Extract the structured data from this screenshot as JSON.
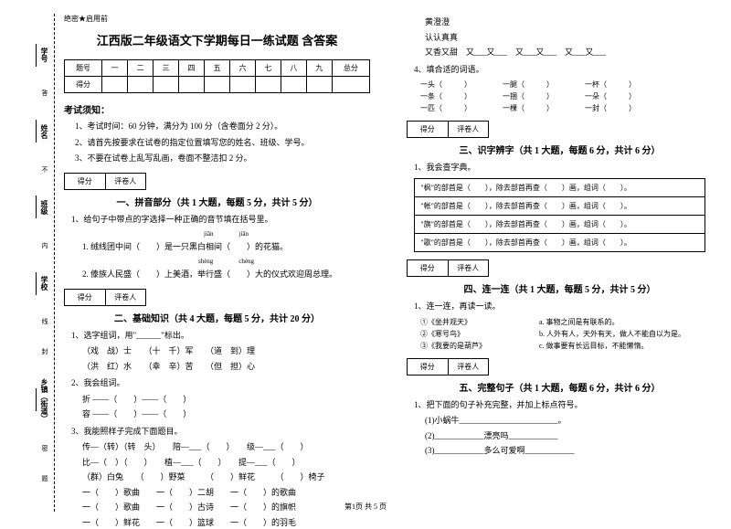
{
  "header": {
    "confidential": "绝密★启用前"
  },
  "title": "江西版二年级语文下学期每日一练试题 含答案",
  "score_table": {
    "row1": [
      "题号",
      "一",
      "二",
      "三",
      "四",
      "五",
      "六",
      "七",
      "八",
      "九",
      "总分"
    ],
    "row2_label": "得分"
  },
  "margin": {
    "xuehao": "学号",
    "xingming": "姓名",
    "banji": "班级",
    "xuexiao": "学校",
    "xiangzhen": "乡镇（街道）",
    "nei": "内",
    "xian": "线",
    "feng": "封",
    "bu": "不",
    "mi": "密",
    "ti": "题",
    "da": "答"
  },
  "notice": {
    "title": "考试须知：",
    "items": [
      "1、考试时间：60 分钟，满分为 100 分（含卷面分 2 分）。",
      "2、请首先按要求在试卷的指定位置填写您的姓名、班级、学号。",
      "3、不要在试卷上乱写乱画，卷面不整洁扣 2 分。"
    ]
  },
  "section_box": {
    "score": "得分",
    "reviewer": "评卷人"
  },
  "sections": {
    "s1": {
      "title": "一、拼音部分（共 1 大题，每题 5 分，共计 5 分）",
      "q1": "1、给句子中带点的字选择一种正确的音节填在括号里。",
      "q1_1a": "jiān",
      "q1_1b": "jiān",
      "q1_1": "1. 绒线团中间（　　）是一只黑白相间（　　）的花猫。",
      "q1_2a": "shèng",
      "q1_2b": "chéng",
      "q1_2": "2. 傣族人民盛（　　）上美酒，举行盛（　　）大的仪式欢迎周总理。"
    },
    "s2": {
      "title": "二、基础知识（共 4 大题，每题 5 分，共计 20 分）",
      "q1": "1、选字组词，用\"______\"标出。",
      "q1_1": "（戏　战）士　　（十　千）军　　（道　到）理",
      "q1_2": "（洪　红）水　　（幸　辛）苦　　（但　担）心",
      "q2": "2、我会组词。",
      "q2_1": "折 ——（　　）——（　　）",
      "q2_2": "容 ——（　　）——（　　）",
      "q3": "3、我能照样子完成下面题目。",
      "q3_1": "传—（转）（转　头）　　陪—___（　　）　　级—___（　　）",
      "q3_2": "比—（　）（　　）　　植—___（　　）　　提—___（　　）",
      "q3_3": "（群）白兔　　（　　）野菜　　　（　　）鲜花　　　（　　）椅子",
      "q3_4": "一（　　）歌曲　　一（　　）二胡　　一（　　）的歌曲",
      "q3_5": "一（　　）歌曲　　一（　　）古诗　　一（　　）的旗帜",
      "q3_6": "一（　　）鲜花　　一（　　）篮球　　一（　　）的羽毛"
    },
    "s2r": {
      "lines": [
        "黄澄澄",
        "认认真真",
        "又香又甜　又___又___　又___又___　又___又___"
      ],
      "q4": "4、填合适的词语。",
      "q4_rows": [
        [
          "一头（　　　）",
          "一腿（　　　）",
          "一杯（　　　）"
        ],
        [
          "一条（　　　）",
          "一捆（　　　）",
          "一朵（　　　）"
        ],
        [
          "一匹（　　　）",
          "一棵（　　　）",
          "一封（　　　）"
        ]
      ]
    },
    "s3": {
      "title": "三、识字辨字（共 1 大题，每题 6 分，共计 6 分）",
      "q1": "1、我会查字典。",
      "rows": [
        "\"枫\"的部首是（　　），除去部首再查（　　）画，组词（　　）。",
        "\"帐\"的部首是（　　），除去部首再查（　　）画，组词（　　）。",
        "\"旗\"的部首是（　　），除去部首再查（　　）画，组词（　　）。",
        "\"歌\"的部首是（　　），除去部首再查（　　）画，组词（　　）。"
      ]
    },
    "s4": {
      "title": "四、连一连（共 1 大题，每题 5 分，共计 5 分）",
      "q1": "1、连一连，再读一读。",
      "rows": [
        [
          "①《坐井观天》",
          "a. 事物之间是有联系的。"
        ],
        [
          "②《寒号鸟》",
          "b. 人外有人，天外有天，做人不能自以为是。"
        ],
        [
          "③《我要的是葫芦》",
          "c. 做事要有长远目标，不能懒惰。"
        ]
      ]
    },
    "s5": {
      "title": "五、完整句子（共 1 大题，每题 6 分，共计 6 分）",
      "q1": "1、把下面的句子补充完整，并加上标点符号。",
      "rows": [
        "(1)小蜗牛________________________。",
        "(2)____________漂亮吗____________",
        "(3)____________多么可爱啊____________"
      ]
    }
  },
  "footer": "第1页 共 5 页"
}
